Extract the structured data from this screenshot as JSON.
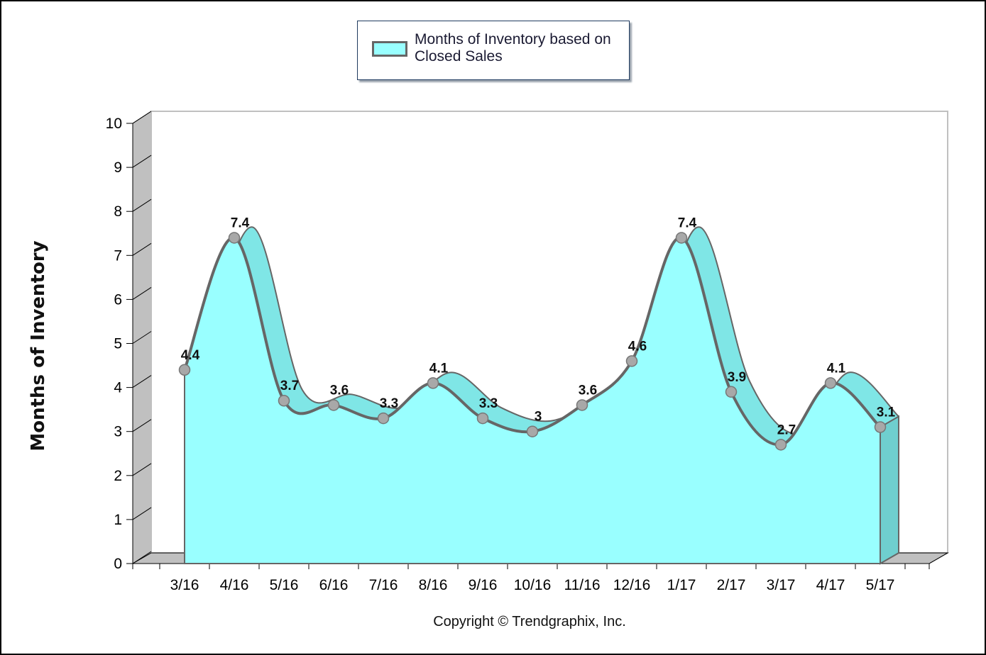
{
  "chart_data": {
    "type": "area",
    "categories": [
      "3/16",
      "4/16",
      "5/16",
      "6/16",
      "7/16",
      "8/16",
      "9/16",
      "10/16",
      "11/16",
      "12/16",
      "1/17",
      "2/17",
      "3/17",
      "4/17",
      "5/17"
    ],
    "series": [
      {
        "name": "Months of Inventory based on Closed Sales",
        "values": [
          4.4,
          7.4,
          3.7,
          3.6,
          3.3,
          4.1,
          3.3,
          3,
          3.6,
          4.6,
          7.4,
          3.9,
          2.7,
          4.1,
          3.1
        ],
        "labels": [
          "4.4",
          "7.4",
          "3.7",
          "3.6",
          "3.3",
          "4.1",
          "3.3",
          "3",
          "3.6",
          "4.6",
          "7.4",
          "3.9",
          "2.7",
          "4.1",
          "3.1"
        ]
      }
    ],
    "ylabel": "Months of Inventory",
    "xlabel": "",
    "ylim": [
      0,
      10
    ],
    "yticks": [
      "0",
      "1",
      "2",
      "3",
      "4",
      "5",
      "6",
      "7",
      "8",
      "9",
      "10"
    ],
    "legend_position": "top-center",
    "colors": {
      "fill": "#99ffff",
      "fill_depth": "#7fe6e6",
      "line": "#666666",
      "marker": "#a8a8a8",
      "wall": "#c0c0c0"
    }
  },
  "footer": {
    "copyright": "Copyright © Trendgraphix, Inc."
  }
}
